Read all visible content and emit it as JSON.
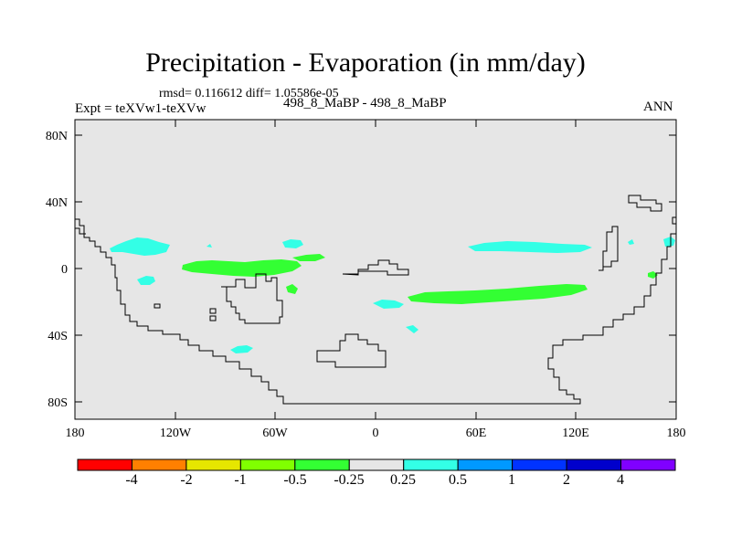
{
  "header": {
    "title": "Precipitation - Evaporation (in mm/day)",
    "stats": "rmsd= 0.116612 diff= 1.05586e-05",
    "left_label": "Expt = teXVw1-teXVw",
    "center_label": "498_8_MaBP - 498_8_MaBP",
    "right_label": "ANN"
  },
  "map": {
    "background_color": "#e6e6e6",
    "lat_labels": [
      "80N",
      "40N",
      "0",
      "40S",
      "80S"
    ],
    "lon_labels": [
      "180",
      "120W",
      "60W",
      "0",
      "60E",
      "120E",
      "180"
    ]
  },
  "colorbar": {
    "colors": [
      "#ff0000",
      "#ff8000",
      "#e6e600",
      "#80ff00",
      "#33ff33",
      "#e6e6e6",
      "#33ffe6",
      "#0099ff",
      "#0033ff",
      "#0000cc",
      "#8000ff"
    ],
    "labels": [
      "-4",
      "-2",
      "-1",
      "-0.5",
      "-0.25",
      "0.25",
      "0.5",
      "1",
      "2",
      "4"
    ]
  },
  "chart_data": {
    "type": "heatmap",
    "title": "Precipitation - Evaporation (in mm/day)",
    "x_ticks": [
      "180",
      "120W",
      "60W",
      "0",
      "60E",
      "120E",
      "180"
    ],
    "y_ticks": [
      "80N",
      "40N",
      "0",
      "40S",
      "80S"
    ],
    "xlim": [
      -180,
      180
    ],
    "ylim": [
      -90,
      90
    ],
    "levels": [
      -4,
      -2,
      -1,
      -0.5,
      -0.25,
      0.25,
      0.5,
      1,
      2,
      4
    ],
    "regions": [
      {
        "level": "0.25 to 0.5",
        "lon": [
          -148,
          -125
        ],
        "lat": [
          11,
          20
        ]
      },
      {
        "level": "0.25 to 0.5",
        "lon": [
          -143,
          -126
        ],
        "lat": [
          -10,
          -4
        ]
      },
      {
        "level": "0.25 to 0.5",
        "lon": [
          -55,
          -44
        ],
        "lat": [
          14,
          18
        ]
      },
      {
        "level": "0.25 to 0.5",
        "lon": [
          -85,
          -73
        ],
        "lat": [
          -50,
          -45
        ]
      },
      {
        "level": "0.25 to 0.5",
        "lon": [
          55,
          120
        ],
        "lat": [
          10,
          17
        ]
      },
      {
        "level": "0.25 to 0.5",
        "lon": [
          -2,
          22
        ],
        "lat": [
          -25,
          -18
        ]
      },
      {
        "level": "0.25 to 0.5",
        "lon": [
          19,
          27
        ],
        "lat": [
          -38,
          -34
        ]
      },
      {
        "level": "-0.5 to -0.25",
        "lon": [
          -115,
          -48
        ],
        "lat": [
          -5,
          6
        ]
      },
      {
        "level": "-0.5 to -0.25",
        "lon": [
          -40,
          -27
        ],
        "lat": [
          4,
          8
        ]
      },
      {
        "level": "-0.5 to -0.25",
        "lon": [
          20,
          126
        ],
        "lat": [
          -20,
          -9
        ]
      },
      {
        "level": "-0.5 to -0.25",
        "lon": [
          -50,
          -45
        ],
        "lat": [
          -14,
          -8
        ]
      },
      {
        "level": "-0.5 to -0.25",
        "lon": [
          151,
          157
        ],
        "lat": [
          -6,
          -2
        ]
      }
    ]
  }
}
